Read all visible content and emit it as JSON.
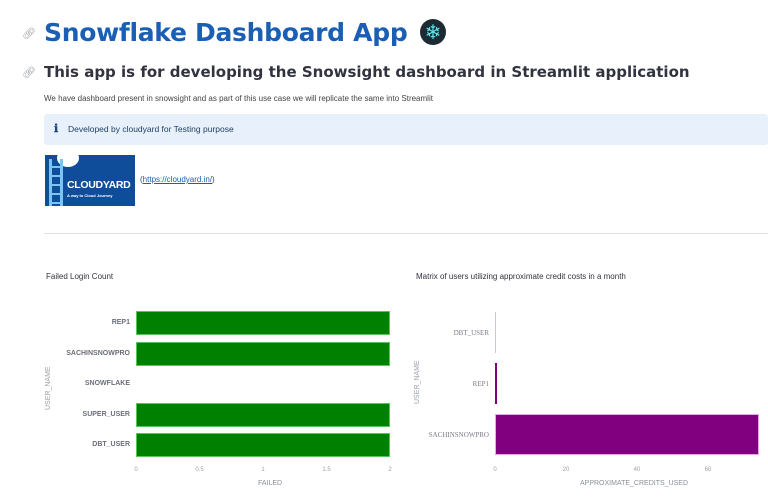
{
  "header": {
    "title": "Snowflake Dashboard App",
    "title_emoji": "❄",
    "subtitle": "This app is for developing the Snowsight dashboard in Streamlit application",
    "description": "We have dashboard present in snowsight and as part of this use case we will replicate the same into Streamlit",
    "info_icon": "ℹ",
    "info_text": "Developed by cloudyard for Testing purpose"
  },
  "logo": {
    "name": "CLOUDYARD",
    "tagline": "A way to Cloud Journey"
  },
  "link": {
    "prefix": "(",
    "url_text": "https://cloudyard.in/",
    "suffix": ")"
  },
  "colors": {
    "title": "#1a5fb4",
    "info_bg": "#e8f1fb",
    "bar_green": "#008000",
    "bar_purple": "#800080"
  },
  "chart_data": [
    {
      "type": "bar",
      "orientation": "horizontal",
      "title": "Failed Login Count",
      "xlabel": "FAILED",
      "ylabel": "USER_NAME",
      "categories": [
        "REP1",
        "SACHINSNOWPRO",
        "SNOWFLAKE",
        "SUPER_USER",
        "DBT_USER"
      ],
      "values": [
        2,
        2,
        0,
        2,
        2
      ],
      "xlim": [
        0,
        2
      ],
      "xticks": [
        "0",
        "0.5",
        "1",
        "1.5",
        "2"
      ],
      "color": "#008000",
      "grid": false
    },
    {
      "type": "bar",
      "orientation": "horizontal",
      "title": "Matrix of users utilizing approximate credit costs in a month",
      "xlabel": "APPROXIMATE_CREDITS_USED",
      "ylabel": "USER_NAME",
      "categories": [
        "DBT_USER",
        "REP1",
        "SACHINSNOWPRO"
      ],
      "values": [
        0.1,
        0.5,
        74.4
      ],
      "xlim": [
        0,
        75
      ],
      "xticks": [
        "0",
        "20",
        "40",
        "60"
      ],
      "color": "#800080",
      "grid": false
    }
  ]
}
